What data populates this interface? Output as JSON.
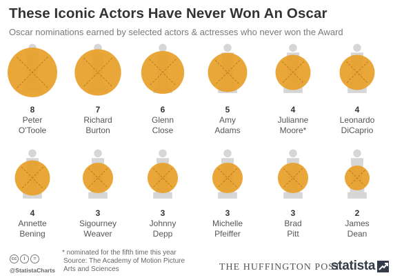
{
  "header": {
    "title": "These Iconic Actors Have Never Won An Oscar",
    "subtitle": "Oscar nominations earned by selected actors & actresses who never won the Award"
  },
  "colors": {
    "circle": "#e8a02a",
    "statuette": "#d6d6d6",
    "cross": "#b87a1a",
    "value_text": "#333333",
    "name_text": "#555555"
  },
  "chart_data": {
    "type": "proportional-symbol",
    "categories": [
      "Peter O'Toole",
      "Richard Burton",
      "Glenn Close",
      "Amy Adams",
      "Julianne Moore*",
      "Leonardo DiCaprio",
      "Annette Bening",
      "Sigourney Weaver",
      "Johnny Depp",
      "Michelle Pfeiffer",
      "Brad Pitt",
      "James Dean"
    ],
    "label_lines": [
      [
        "Peter",
        "O'Toole"
      ],
      [
        "Richard",
        "Burton"
      ],
      [
        "Glenn",
        "Close"
      ],
      [
        "Amy",
        "Adams"
      ],
      [
        "Julianne",
        "Moore*"
      ],
      [
        "Leonardo",
        "DiCaprio"
      ],
      [
        "Annette",
        "Bening"
      ],
      [
        "Sigourney",
        "Weaver"
      ],
      [
        "Johnny",
        "Depp"
      ],
      [
        "Michelle",
        "Pfeiffer"
      ],
      [
        "Brad",
        "Pitt"
      ],
      [
        "James",
        "Dean"
      ]
    ],
    "values": [
      8,
      7,
      6,
      5,
      4,
      4,
      4,
      3,
      3,
      3,
      3,
      2
    ],
    "title": "These Iconic Actors Have Never Won An Oscar",
    "subtitle": "Oscar nominations earned by selected actors & actresses who never won the Award"
  },
  "footer": {
    "footnote": "* nominated for the fifth time this year",
    "source": "Source: The Academy of Motion Picture Arts and Sciences",
    "cc_icons": [
      "cc",
      "i",
      "="
    ],
    "handle": "@StatistaCharts",
    "publisher": "THE HUFFINGTON POST",
    "brand": "statista"
  }
}
